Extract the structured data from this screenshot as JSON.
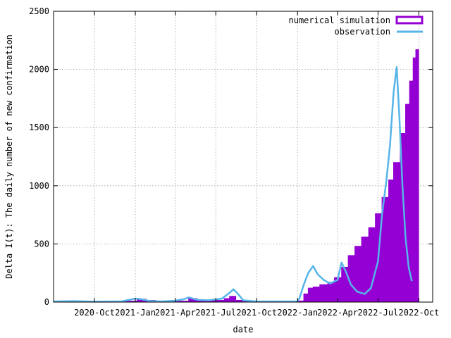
{
  "chart_data": {
    "type": "area",
    "xlabel": "date",
    "ylabel": "Delta I(t): The daily number of new confirmation",
    "xlim": [
      "2020-07-01",
      "2022-11-01"
    ],
    "ylim": [
      0,
      2500
    ],
    "x_ticks": [
      "2020-Oct",
      "2021-Jan",
      "2021-Apr",
      "2021-Jul",
      "2021-Oct",
      "2022-Jan",
      "2022-Apr",
      "2022-Jul",
      "2022-Oct"
    ],
    "x_tick_dates": [
      "2020-10-01",
      "2021-01-01",
      "2021-04-01",
      "2021-07-01",
      "2021-10-01",
      "2022-01-01",
      "2022-04-01",
      "2022-07-01",
      "2022-10-01"
    ],
    "y_ticks": [
      0,
      500,
      1000,
      1500,
      2000,
      2500
    ],
    "grid": true,
    "legend_position": "top-right",
    "series": [
      {
        "name": "numerical simulation",
        "style": "filled-steps",
        "color": "#9400d3",
        "points": [
          [
            "2020-07-01",
            5
          ],
          [
            "2020-10-01",
            5
          ],
          [
            "2020-12-15",
            8
          ],
          [
            "2021-01-05",
            25
          ],
          [
            "2021-01-25",
            15
          ],
          [
            "2021-02-15",
            6
          ],
          [
            "2021-04-01",
            8
          ],
          [
            "2021-05-01",
            30
          ],
          [
            "2021-05-20",
            15
          ],
          [
            "2021-06-20",
            15
          ],
          [
            "2021-07-20",
            30
          ],
          [
            "2021-08-01",
            50
          ],
          [
            "2021-08-15",
            15
          ],
          [
            "2021-09-15",
            5
          ],
          [
            "2021-12-31",
            5
          ],
          [
            "2022-01-05",
            10
          ],
          [
            "2022-01-15",
            70
          ],
          [
            "2022-01-25",
            120
          ],
          [
            "2022-02-05",
            130
          ],
          [
            "2022-02-20",
            150
          ],
          [
            "2022-03-10",
            170
          ],
          [
            "2022-03-25",
            210
          ],
          [
            "2022-04-10",
            300
          ],
          [
            "2022-04-25",
            400
          ],
          [
            "2022-05-10",
            480
          ],
          [
            "2022-05-25",
            560
          ],
          [
            "2022-06-10",
            640
          ],
          [
            "2022-06-25",
            760
          ],
          [
            "2022-07-10",
            900
          ],
          [
            "2022-07-25",
            1050
          ],
          [
            "2022-08-05",
            1200
          ],
          [
            "2022-08-20",
            1450
          ],
          [
            "2022-09-01",
            1700
          ],
          [
            "2022-09-10",
            1900
          ],
          [
            "2022-09-18",
            2100
          ],
          [
            "2022-09-24",
            2170
          ]
        ]
      },
      {
        "name": "observation",
        "style": "line",
        "color": "#56b4e9",
        "points": [
          [
            "2020-07-01",
            5
          ],
          [
            "2020-08-15",
            8
          ],
          [
            "2020-10-01",
            4
          ],
          [
            "2020-12-01",
            6
          ],
          [
            "2021-01-01",
            30
          ],
          [
            "2021-01-15",
            25
          ],
          [
            "2021-02-01",
            10
          ],
          [
            "2021-03-01",
            5
          ],
          [
            "2021-04-01",
            12
          ],
          [
            "2021-04-20",
            25
          ],
          [
            "2021-05-01",
            40
          ],
          [
            "2021-05-20",
            20
          ],
          [
            "2021-06-15",
            15
          ],
          [
            "2021-07-15",
            30
          ],
          [
            "2021-08-01",
            80
          ],
          [
            "2021-08-10",
            110
          ],
          [
            "2021-08-20",
            70
          ],
          [
            "2021-09-01",
            15
          ],
          [
            "2021-10-01",
            5
          ],
          [
            "2021-12-31",
            5
          ],
          [
            "2022-01-05",
            30
          ],
          [
            "2022-01-15",
            150
          ],
          [
            "2022-01-25",
            250
          ],
          [
            "2022-02-05",
            310
          ],
          [
            "2022-02-15",
            240
          ],
          [
            "2022-03-01",
            190
          ],
          [
            "2022-03-15",
            160
          ],
          [
            "2022-04-01",
            190
          ],
          [
            "2022-04-10",
            340
          ],
          [
            "2022-04-20",
            260
          ],
          [
            "2022-05-01",
            150
          ],
          [
            "2022-05-15",
            90
          ],
          [
            "2022-06-01",
            70
          ],
          [
            "2022-06-15",
            120
          ],
          [
            "2022-07-01",
            350
          ],
          [
            "2022-07-10",
            750
          ],
          [
            "2022-07-20",
            1050
          ],
          [
            "2022-07-28",
            1350
          ],
          [
            "2022-08-05",
            1800
          ],
          [
            "2022-08-12",
            2020
          ],
          [
            "2022-08-18",
            1600
          ],
          [
            "2022-08-25",
            1000
          ],
          [
            "2022-09-01",
            550
          ],
          [
            "2022-09-08",
            300
          ],
          [
            "2022-09-15",
            180
          ]
        ]
      }
    ]
  }
}
